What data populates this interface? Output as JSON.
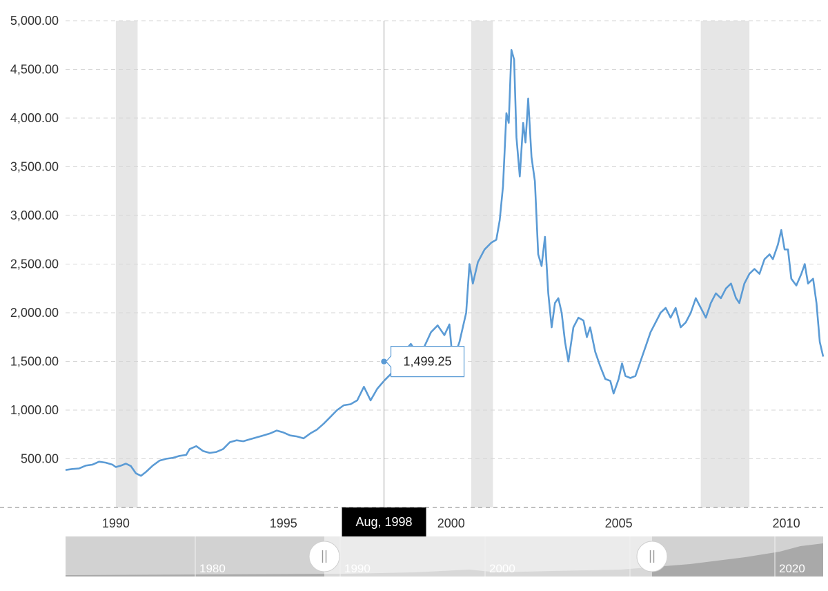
{
  "chart_data": {
    "type": "line",
    "title": "",
    "xlabel": "",
    "ylabel": "",
    "xlim": [
      1988.5,
      2011.1
    ],
    "ylim": [
      0,
      5000
    ],
    "grid": true,
    "y_ticks": [
      {
        "value": 500,
        "label": "500.00"
      },
      {
        "value": 1000,
        "label": "1,000.00"
      },
      {
        "value": 1500,
        "label": "1,500.00"
      },
      {
        "value": 2000,
        "label": "2,000.00"
      },
      {
        "value": 2500,
        "label": "2,500.00"
      },
      {
        "value": 3000,
        "label": "3,000.00"
      },
      {
        "value": 3500,
        "label": "3,500.00"
      },
      {
        "value": 4000,
        "label": "4,000.00"
      },
      {
        "value": 4500,
        "label": "4,500.00"
      },
      {
        "value": 5000,
        "label": "5,000.00"
      }
    ],
    "x_ticks": [
      {
        "value": 1990,
        "label": "1990"
      },
      {
        "value": 1995,
        "label": "1995"
      },
      {
        "value": 2000,
        "label": "2000"
      },
      {
        "value": 2005,
        "label": "2005"
      },
      {
        "value": 2010,
        "label": "2010"
      }
    ],
    "recession_bands": [
      {
        "start": 1990.0,
        "end": 1990.65
      },
      {
        "start": 2000.6,
        "end": 2001.25
      },
      {
        "start": 2007.45,
        "end": 2008.9
      }
    ],
    "series": [
      {
        "color": "#5b9bd5",
        "points": [
          [
            1988.5,
            385
          ],
          [
            1988.7,
            395
          ],
          [
            1988.9,
            400
          ],
          [
            1989.1,
            430
          ],
          [
            1989.3,
            440
          ],
          [
            1989.5,
            470
          ],
          [
            1989.7,
            460
          ],
          [
            1989.9,
            440
          ],
          [
            1990.0,
            415
          ],
          [
            1990.15,
            430
          ],
          [
            1990.3,
            450
          ],
          [
            1990.45,
            425
          ],
          [
            1990.6,
            350
          ],
          [
            1990.75,
            325
          ],
          [
            1990.9,
            365
          ],
          [
            1991.1,
            430
          ],
          [
            1991.3,
            480
          ],
          [
            1991.5,
            500
          ],
          [
            1991.7,
            510
          ],
          [
            1991.9,
            530
          ],
          [
            1992.1,
            540
          ],
          [
            1992.2,
            600
          ],
          [
            1992.4,
            630
          ],
          [
            1992.6,
            580
          ],
          [
            1992.8,
            560
          ],
          [
            1993.0,
            570
          ],
          [
            1993.2,
            600
          ],
          [
            1993.4,
            670
          ],
          [
            1993.6,
            690
          ],
          [
            1993.8,
            680
          ],
          [
            1994.0,
            700
          ],
          [
            1994.2,
            720
          ],
          [
            1994.4,
            740
          ],
          [
            1994.6,
            760
          ],
          [
            1994.8,
            790
          ],
          [
            1995.0,
            770
          ],
          [
            1995.2,
            740
          ],
          [
            1995.4,
            730
          ],
          [
            1995.6,
            710
          ],
          [
            1995.8,
            760
          ],
          [
            1996.0,
            800
          ],
          [
            1996.2,
            860
          ],
          [
            1996.4,
            930
          ],
          [
            1996.6,
            1000
          ],
          [
            1996.8,
            1050
          ],
          [
            1997.0,
            1060
          ],
          [
            1997.2,
            1100
          ],
          [
            1997.4,
            1240
          ],
          [
            1997.6,
            1100
          ],
          [
            1997.8,
            1220
          ],
          [
            1998.0,
            1300
          ],
          [
            1998.2,
            1370
          ],
          [
            1998.4,
            1500
          ],
          [
            1998.6,
            1600
          ],
          [
            1998.8,
            1680
          ],
          [
            1999.0,
            1580
          ],
          [
            1999.2,
            1650
          ],
          [
            1999.4,
            1800
          ],
          [
            1999.6,
            1870
          ],
          [
            1999.8,
            1770
          ],
          [
            1999.95,
            1880
          ],
          [
            2000.05,
            1500
          ],
          [
            2000.25,
            1700
          ],
          [
            2000.45,
            2000
          ],
          [
            2000.55,
            2500
          ],
          [
            2000.65,
            2300
          ],
          [
            2000.8,
            2520
          ],
          [
            2001.0,
            2650
          ],
          [
            2001.2,
            2720
          ],
          [
            2001.35,
            2750
          ],
          [
            2001.45,
            2950
          ],
          [
            2001.55,
            3300
          ],
          [
            2001.65,
            4050
          ],
          [
            2001.72,
            3950
          ],
          [
            2001.8,
            4700
          ],
          [
            2001.88,
            4600
          ],
          [
            2001.95,
            3800
          ],
          [
            2002.05,
            3400
          ],
          [
            2002.15,
            3950
          ],
          [
            2002.22,
            3750
          ],
          [
            2002.3,
            4200
          ],
          [
            2002.4,
            3600
          ],
          [
            2002.5,
            3350
          ],
          [
            2002.6,
            2600
          ],
          [
            2002.7,
            2480
          ],
          [
            2002.8,
            2780
          ],
          [
            2002.9,
            2200
          ],
          [
            2003.0,
            1850
          ],
          [
            2003.1,
            2100
          ],
          [
            2003.2,
            2150
          ],
          [
            2003.3,
            2000
          ],
          [
            2003.4,
            1700
          ],
          [
            2003.5,
            1500
          ],
          [
            2003.65,
            1850
          ],
          [
            2003.8,
            1950
          ],
          [
            2003.95,
            1920
          ],
          [
            2004.05,
            1750
          ],
          [
            2004.15,
            1850
          ],
          [
            2004.3,
            1600
          ],
          [
            2004.45,
            1450
          ],
          [
            2004.6,
            1320
          ],
          [
            2004.75,
            1300
          ],
          [
            2004.85,
            1170
          ],
          [
            2005.0,
            1320
          ],
          [
            2005.1,
            1480
          ],
          [
            2005.2,
            1350
          ],
          [
            2005.35,
            1330
          ],
          [
            2005.5,
            1350
          ],
          [
            2005.65,
            1500
          ],
          [
            2005.8,
            1650
          ],
          [
            2005.95,
            1800
          ],
          [
            2006.1,
            1900
          ],
          [
            2006.25,
            2000
          ],
          [
            2006.4,
            2050
          ],
          [
            2006.55,
            1950
          ],
          [
            2006.7,
            2050
          ],
          [
            2006.85,
            1850
          ],
          [
            2007.0,
            1900
          ],
          [
            2007.15,
            2000
          ],
          [
            2007.3,
            2150
          ],
          [
            2007.45,
            2050
          ],
          [
            2007.6,
            1950
          ],
          [
            2007.75,
            2100
          ],
          [
            2007.9,
            2200
          ],
          [
            2008.05,
            2150
          ],
          [
            2008.2,
            2250
          ],
          [
            2008.35,
            2300
          ],
          [
            2008.5,
            2150
          ],
          [
            2008.6,
            2100
          ],
          [
            2008.75,
            2300
          ],
          [
            2008.9,
            2400
          ],
          [
            2009.05,
            2450
          ],
          [
            2009.2,
            2400
          ],
          [
            2009.35,
            2550
          ],
          [
            2009.5,
            2600
          ],
          [
            2009.6,
            2550
          ],
          [
            2009.75,
            2700
          ],
          [
            2009.85,
            2850
          ],
          [
            2009.95,
            2650
          ],
          [
            2010.05,
            2650
          ],
          [
            2010.15,
            2350
          ],
          [
            2010.3,
            2280
          ],
          [
            2010.45,
            2400
          ],
          [
            2010.55,
            2500
          ],
          [
            2010.65,
            2300
          ],
          [
            2010.8,
            2350
          ],
          [
            2010.9,
            2100
          ],
          [
            2011.0,
            1700
          ],
          [
            2011.1,
            1550
          ]
        ]
      }
    ],
    "tooltip": {
      "x": 1998.0,
      "y": 1499.25,
      "value_label": "1,499.25",
      "date_label": "Aug, 1998"
    },
    "navigator": {
      "labels": [
        "1980",
        "1990",
        "2000",
        "2020"
      ]
    }
  }
}
